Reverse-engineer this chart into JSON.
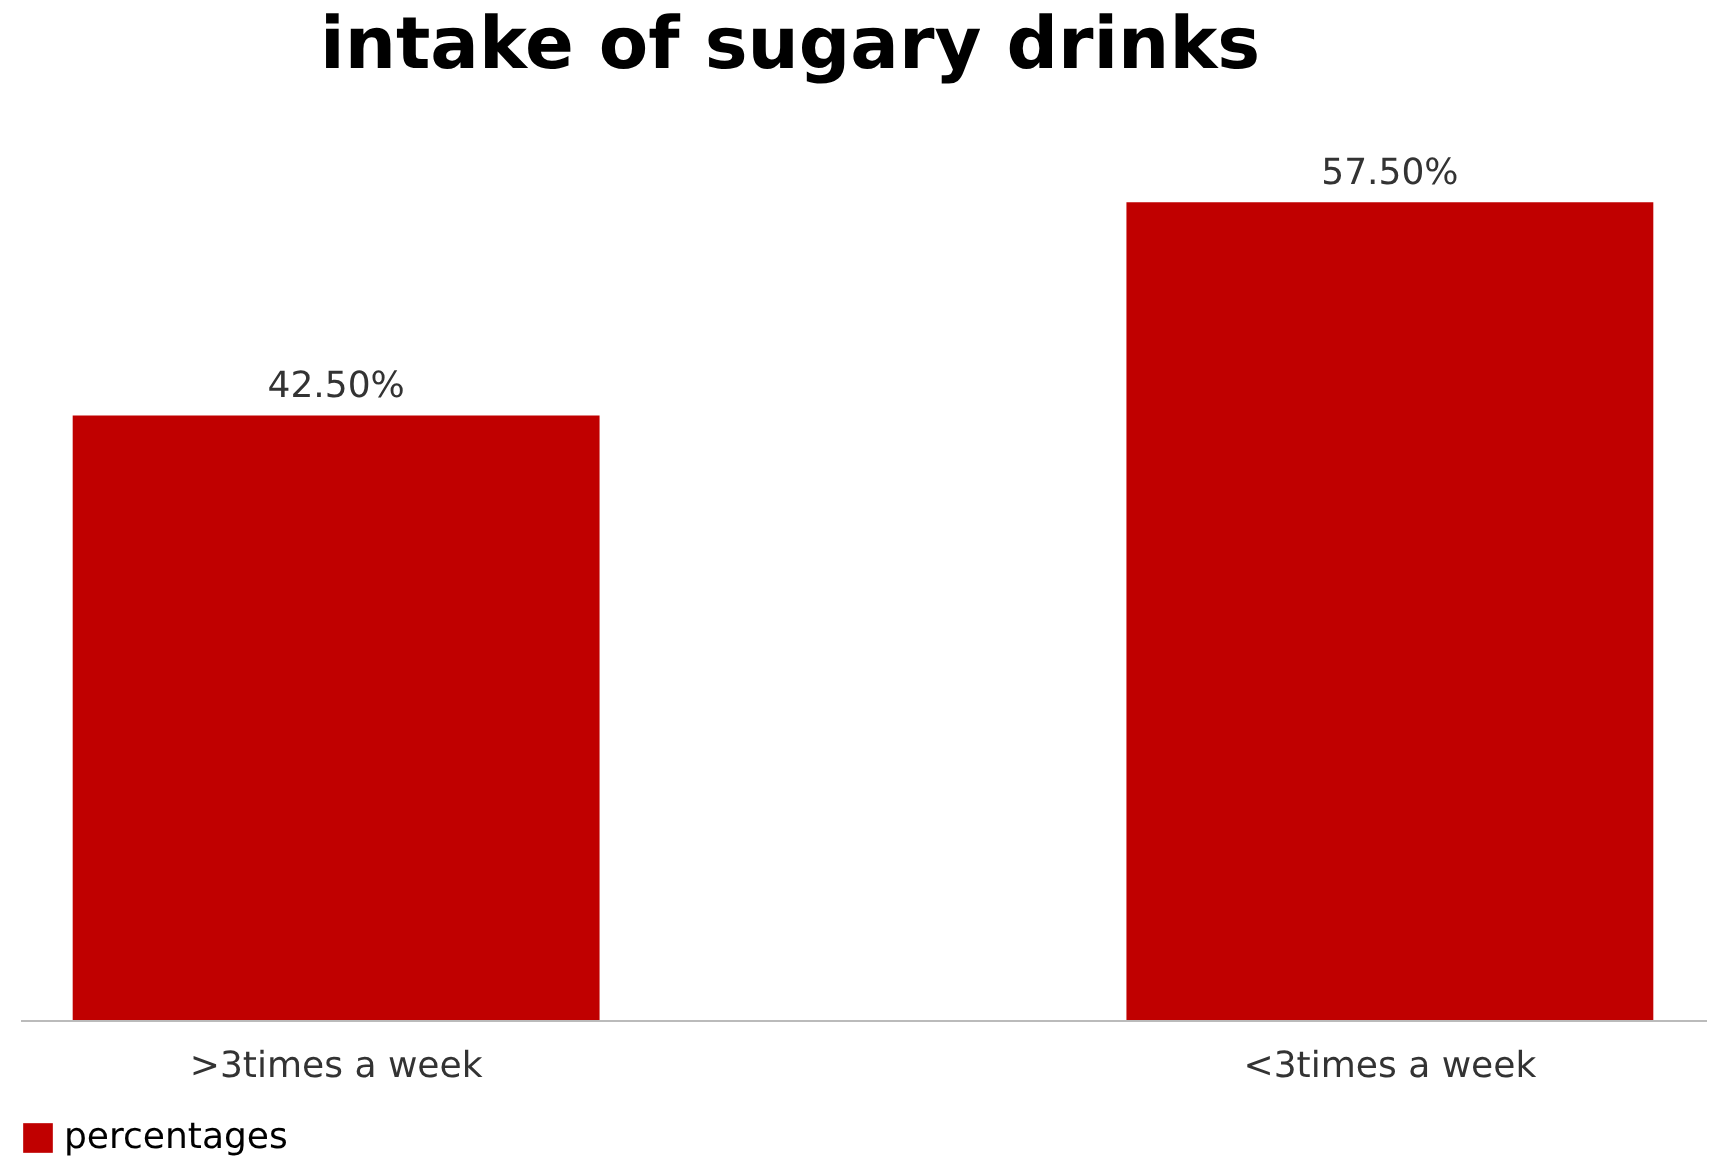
{
  "chart_data": {
    "type": "bar",
    "title": "intake of sugary drinks",
    "categories": [
      ">3times a week",
      "<3times a week"
    ],
    "series": [
      {
        "name": "percentages",
        "color": "#c00000",
        "values": [
          42.5,
          57.5
        ],
        "value_labels": [
          "42.50%",
          "57.50%"
        ]
      }
    ],
    "legend": "bottom",
    "grid": false
  }
}
